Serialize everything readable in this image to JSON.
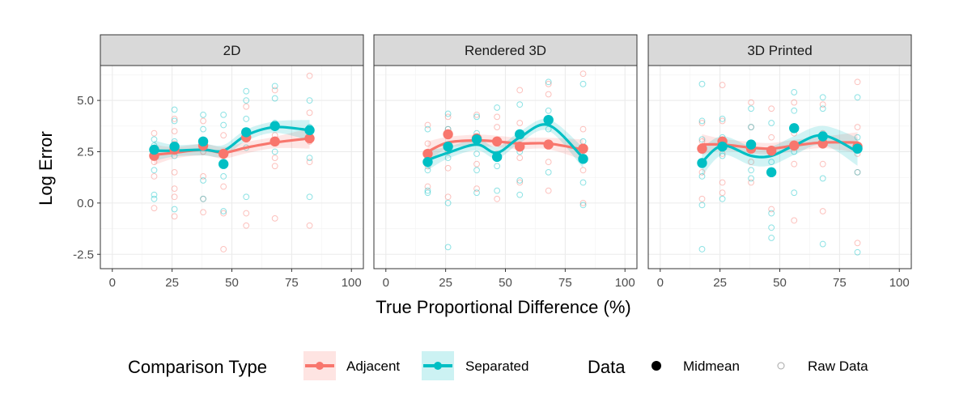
{
  "chart_data": {
    "type": "scatter",
    "xlabel": "True Proportional Difference (%)",
    "ylabel": "Log Error",
    "xlim": [
      -5,
      105
    ],
    "ylim": [
      -3.2,
      6.7
    ],
    "x_ticks": [
      0,
      25,
      50,
      75,
      100
    ],
    "y_ticks": [
      -2.5,
      0.0,
      2.5,
      5.0
    ],
    "x_tick_labels": [
      "0",
      "25",
      "50",
      "75",
      "100"
    ],
    "y_tick_labels": [
      "-2.5",
      "0.0",
      "2.5",
      "5.0"
    ],
    "grid": true,
    "legend": {
      "comparison_title": "Comparison Type",
      "data_title": "Data",
      "items": [
        "Adjacent",
        "Separated"
      ],
      "data_items": [
        "Midmean",
        "Raw Data"
      ],
      "placement": "bottom"
    },
    "colors": {
      "Adjacent": "#F8766D",
      "Separated": "#00BFC4",
      "strip_bg": "#D9D9D9",
      "grid": "#EBEBEB"
    },
    "panels": [
      {
        "title": "2D",
        "midmean": {
          "Adjacent": {
            "x": [
              17.5,
              26,
              38,
              46.5,
              56,
              68,
              82.5
            ],
            "y": [
              2.3,
              2.6,
              2.8,
              2.4,
              3.2,
              3.0,
              3.15
            ]
          },
          "Separated": {
            "x": [
              17.5,
              26,
              38,
              46.5,
              56,
              68,
              82.5
            ],
            "y": [
              2.6,
              2.75,
              3.0,
              1.9,
              3.45,
              3.75,
              3.55
            ]
          }
        },
        "smooth": {
          "Adjacent": {
            "x": [
              17.5,
              26,
              38,
              46.5,
              56,
              68,
              82.5
            ],
            "y": [
              2.35,
              2.45,
              2.6,
              2.45,
              2.7,
              2.95,
              3.15
            ]
          },
          "Separated": {
            "x": [
              17.5,
              26,
              38,
              46.5,
              56,
              68,
              82.5
            ],
            "y": [
              2.55,
              2.55,
              2.6,
              2.55,
              3.3,
              3.7,
              3.55
            ]
          }
        },
        "raw": {
          "Adjacent": {
            "x": [
              17.5,
              17.5,
              17.5,
              17.5,
              17.5,
              26,
              26,
              26,
              26,
              26,
              26,
              26,
              38,
              38,
              38,
              38,
              38,
              46.5,
              46.5,
              46.5,
              46.5,
              56,
              56,
              56,
              56,
              68,
              68,
              68,
              68,
              68,
              82.5,
              82.5,
              82.5,
              82.5,
              82.5
            ],
            "y": [
              3.4,
              2.0,
              1.3,
              -0.25,
              2.6,
              4.1,
              3.5,
              1.5,
              0.7,
              0.3,
              -0.65,
              2.9,
              4.0,
              2.5,
              1.3,
              0.2,
              -0.45,
              3.3,
              0.8,
              -0.5,
              -2.25,
              4.7,
              3.1,
              -0.5,
              -1.1,
              5.5,
              3.3,
              2.2,
              1.8,
              -0.75,
              6.2,
              4.4,
              3.0,
              2.0,
              -1.1
            ]
          },
          "Separated": {
            "x": [
              17.5,
              17.5,
              17.5,
              17.5,
              17.5,
              26,
              26,
              26,
              26,
              26,
              38,
              38,
              38,
              38,
              38,
              46.5,
              46.5,
              46.5,
              46.5,
              46.5,
              56,
              56,
              56,
              56,
              56,
              68,
              68,
              68,
              68,
              82.5,
              82.5,
              82.5,
              82.5
            ],
            "y": [
              3.1,
              2.8,
              1.6,
              0.4,
              0.2,
              4.55,
              4.0,
              3.0,
              2.3,
              -0.3,
              4.3,
              3.6,
              2.7,
              1.1,
              0.2,
              4.3,
              3.8,
              2.0,
              1.3,
              -0.4,
              5.45,
              5.0,
              4.1,
              2.7,
              0.3,
              5.7,
              5.1,
              3.9,
              2.5,
              5.0,
              3.7,
              2.2,
              0.3
            ]
          }
        }
      },
      {
        "title": "Rendered 3D",
        "midmean": {
          "Adjacent": {
            "x": [
              17.5,
              26,
              38,
              46.5,
              56,
              68,
              82.5
            ],
            "y": [
              2.4,
              3.35,
              3.15,
              3.0,
              2.75,
              2.85,
              2.65
            ]
          },
          "Separated": {
            "x": [
              17.5,
              26,
              38,
              46.5,
              56,
              68,
              82.5
            ],
            "y": [
              2.0,
              2.75,
              3.1,
              2.25,
              3.35,
              4.05,
              2.15
            ]
          }
        },
        "smooth": {
          "Adjacent": {
            "x": [
              17.5,
              26,
              38,
              46.5,
              56,
              68,
              82.5
            ],
            "y": [
              2.5,
              2.95,
              3.05,
              3.0,
              2.9,
              2.9,
              2.6
            ]
          },
          "Separated": {
            "x": [
              17.5,
              26,
              38,
              46.5,
              56,
              68,
              82.5
            ],
            "y": [
              2.1,
              2.45,
              2.85,
              2.45,
              3.2,
              3.8,
              2.2
            ]
          }
        },
        "raw": {
          "Adjacent": {
            "x": [
              17.5,
              17.5,
              17.5,
              17.5,
              26,
              26,
              26,
              26,
              26,
              38,
              38,
              38,
              38,
              46.5,
              46.5,
              46.5,
              46.5,
              56,
              56,
              56,
              56,
              68,
              68,
              68,
              68,
              82.5,
              82.5,
              82.5,
              82.5
            ],
            "y": [
              3.8,
              2.9,
              1.8,
              0.8,
              4.2,
              3.6,
              2.5,
              1.7,
              0.3,
              4.3,
              3.0,
              1.9,
              0.7,
              4.2,
              3.7,
              2.4,
              0.2,
              5.5,
              3.9,
              2.2,
              1.0,
              5.8,
              5.3,
              2.0,
              0.6,
              6.3,
              3.6,
              1.6,
              0.0
            ]
          },
          "Separated": {
            "x": [
              17.5,
              17.5,
              17.5,
              17.5,
              17.5,
              26,
              26,
              26,
              26,
              26,
              38,
              38,
              38,
              38,
              38,
              46.5,
              46.5,
              46.5,
              46.5,
              56,
              56,
              56,
              56,
              56,
              68,
              68,
              68,
              68,
              82.5,
              82.5,
              82.5,
              82.5
            ],
            "y": [
              3.6,
              2.3,
              1.6,
              0.5,
              0.6,
              4.35,
              3.6,
              2.2,
              0.0,
              -2.15,
              4.2,
              3.4,
              2.4,
              1.6,
              0.5,
              4.65,
              3.0,
              1.8,
              0.6,
              4.8,
              3.3,
              2.5,
              1.1,
              0.4,
              5.9,
              4.5,
              3.6,
              1.5,
              5.8,
              3.0,
              1.0,
              -0.1
            ]
          }
        }
      },
      {
        "title": "3D Printed",
        "midmean": {
          "Adjacent": {
            "x": [
              17.5,
              26,
              38,
              46.5,
              56,
              68,
              82.5
            ],
            "y": [
              2.65,
              3.0,
              2.65,
              2.55,
              2.8,
              2.9,
              2.75
            ]
          },
          "Separated": {
            "x": [
              17.5,
              26,
              38,
              46.5,
              56,
              68,
              82.5
            ],
            "y": [
              1.95,
              2.75,
              2.85,
              1.5,
              3.65,
              3.25,
              2.65
            ]
          }
        },
        "smooth": {
          "Adjacent": {
            "x": [
              17.5,
              26,
              38,
              46.5,
              56,
              68,
              82.5
            ],
            "y": [
              2.85,
              2.85,
              2.7,
              2.65,
              2.8,
              2.95,
              2.95
            ]
          },
          "Separated": {
            "x": [
              17.5,
              26,
              38,
              46.5,
              56,
              68,
              82.5
            ],
            "y": [
              2.0,
              2.8,
              2.3,
              2.3,
              2.8,
              3.3,
              2.5
            ]
          }
        },
        "raw": {
          "Adjacent": {
            "x": [
              17.5,
              17.5,
              17.5,
              17.5,
              26,
              26,
              26,
              26,
              26,
              38,
              38,
              38,
              38,
              46.5,
              46.5,
              46.5,
              46.5,
              56,
              56,
              56,
              56,
              68,
              68,
              68,
              68,
              82.5,
              82.5,
              82.5,
              82.5,
              82.5
            ],
            "y": [
              3.9,
              3.0,
              1.5,
              0.2,
              5.75,
              4.0,
              2.4,
              1.0,
              0.5,
              4.9,
              3.7,
              2.0,
              1.0,
              4.6,
              3.2,
              1.5,
              -0.3,
              4.9,
              3.4,
              1.9,
              -0.85,
              4.8,
              3.4,
              1.9,
              -0.4,
              5.9,
              3.7,
              2.4,
              1.5,
              -1.95
            ]
          },
          "Separated": {
            "x": [
              17.5,
              17.5,
              17.5,
              17.5,
              17.5,
              17.5,
              26,
              26,
              26,
              26,
              38,
              38,
              38,
              38,
              38,
              46.5,
              46.5,
              46.5,
              46.5,
              46.5,
              56,
              56,
              56,
              56,
              68,
              68,
              68,
              68,
              68,
              82.5,
              82.5,
              82.5,
              82.5
            ],
            "y": [
              5.8,
              4.0,
              3.1,
              1.3,
              -0.1,
              -2.25,
              4.1,
              3.2,
              2.3,
              0.2,
              4.6,
              3.7,
              2.6,
              1.6,
              1.2,
              3.9,
              2.0,
              -0.5,
              -1.2,
              -1.7,
              5.4,
              4.5,
              2.5,
              0.5,
              5.15,
              4.6,
              2.8,
              1.2,
              -2.0,
              5.15,
              3.2,
              1.5,
              -2.4
            ]
          }
        }
      }
    ]
  }
}
